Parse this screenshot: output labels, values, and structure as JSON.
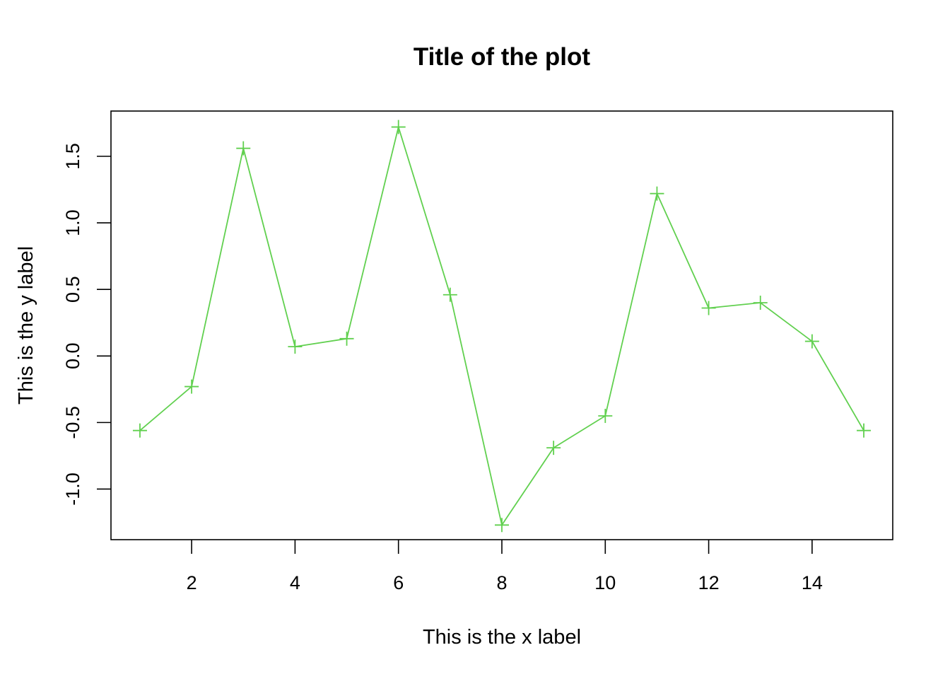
{
  "chart_data": {
    "type": "line",
    "title": "Title of the plot",
    "xlabel": "This is the x label",
    "ylabel": "This is the y label",
    "xlim": [
      0.44,
      15.56
    ],
    "ylim": [
      -1.38,
      1.84
    ],
    "x_ticks": [
      2,
      4,
      6,
      8,
      10,
      12,
      14
    ],
    "x_tick_labels": [
      "2",
      "4",
      "6",
      "8",
      "10",
      "12",
      "14"
    ],
    "y_ticks": [
      -1.0,
      -0.5,
      0.0,
      0.5,
      1.0,
      1.5
    ],
    "y_tick_labels": [
      "-1.0",
      "-0.5",
      "0.0",
      "0.5",
      "1.0",
      "1.5"
    ],
    "grid": false,
    "legend": "none",
    "marker": "plus",
    "series": [
      {
        "color": "#61d04f",
        "x": [
          1,
          2,
          3,
          4,
          5,
          6,
          7,
          8,
          9,
          10,
          11,
          12,
          13,
          14,
          15
        ],
        "y": [
          -0.56,
          -0.23,
          1.56,
          0.07,
          0.13,
          1.72,
          0.46,
          -1.27,
          -0.69,
          -0.45,
          1.22,
          0.36,
          0.4,
          0.11,
          -0.56
        ]
      }
    ]
  }
}
